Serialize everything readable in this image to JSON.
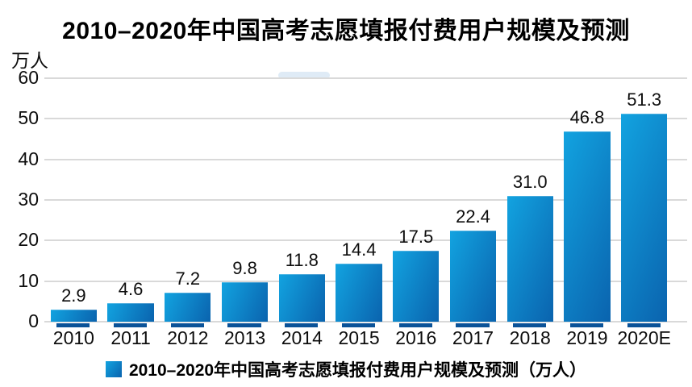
{
  "title": "2010–2020年中国高考志愿填报付费用户规模及预测",
  "y_unit": "万人",
  "legend": {
    "label": "2010–2020年中国高考志愿填报付费用户规模及预测（万人）"
  },
  "colors": {
    "bar_gradient_start": "#12a3e0",
    "bar_gradient_end": "#0a63ae",
    "bar_base_strip": "#0a5298",
    "gridline": "#d9d9d9",
    "text": "#0d0d0d"
  },
  "chart_data": {
    "type": "bar",
    "title": "2010–2020年中国高考志愿填报付费用户规模及预测",
    "categories": [
      "2010",
      "2011",
      "2012",
      "2013",
      "2014",
      "2015",
      "2016",
      "2017",
      "2018",
      "2019",
      "2020E"
    ],
    "values": [
      2.9,
      4.6,
      7.2,
      9.8,
      11.8,
      14.4,
      17.5,
      22.4,
      31.0,
      46.8,
      51.3
    ],
    "value_labels": [
      "2.9",
      "4.6",
      "7.2",
      "9.8",
      "11.8",
      "14.4",
      "17.5",
      "22.4",
      "31.0",
      "46.8",
      "51.3"
    ],
    "xlabel": "",
    "ylabel": "万人",
    "ylim": [
      0,
      60
    ],
    "ytick_step": 10,
    "yticks": [
      0,
      10,
      20,
      30,
      40,
      50,
      60
    ],
    "grid": true,
    "legend_position": "bottom"
  }
}
